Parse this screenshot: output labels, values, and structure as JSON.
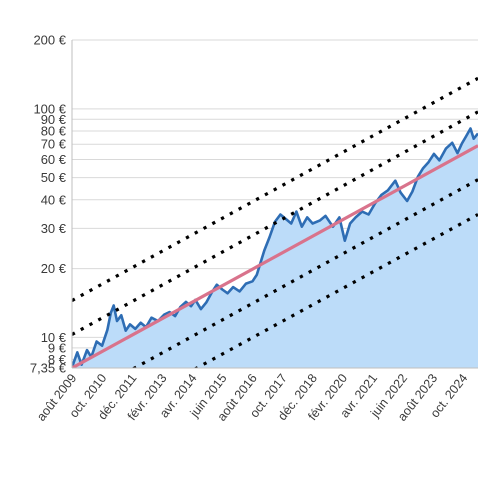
{
  "chart_data": {
    "type": "area",
    "title": "",
    "xlabel": "",
    "ylabel": "",
    "y_scale": "log",
    "ylim": [
      7.35,
      200
    ],
    "xlim": [
      "2009-08-01",
      "2025-05-01"
    ],
    "grid": "horizontal",
    "legend": "none",
    "y_ticks": [
      {
        "value": 7.35,
        "label": "7,35 €"
      },
      {
        "value": 8,
        "label": "8 €"
      },
      {
        "value": 9,
        "label": "9 €"
      },
      {
        "value": 10,
        "label": "10 €"
      },
      {
        "value": 20,
        "label": "20 €"
      },
      {
        "value": 30,
        "label": "30 €"
      },
      {
        "value": 40,
        "label": "40 €"
      },
      {
        "value": 50,
        "label": "50 €"
      },
      {
        "value": 60,
        "label": "60 €"
      },
      {
        "value": 70,
        "label": "70 €"
      },
      {
        "value": 80,
        "label": "80 €"
      },
      {
        "value": 90,
        "label": "90 €"
      },
      {
        "value": 100,
        "label": "100 €"
      },
      {
        "value": 200,
        "label": "200 €"
      }
    ],
    "x_ticks": [
      {
        "date": "2009-08-01",
        "label": "août 2009"
      },
      {
        "date": "2010-10-01",
        "label": "oct. 2010"
      },
      {
        "date": "2011-12-01",
        "label": "déc. 2011"
      },
      {
        "date": "2013-02-01",
        "label": "févr. 2013"
      },
      {
        "date": "2014-04-01",
        "label": "avr. 2014"
      },
      {
        "date": "2015-06-01",
        "label": "juin 2015"
      },
      {
        "date": "2016-08-01",
        "label": "août 2016"
      },
      {
        "date": "2017-10-01",
        "label": "oct. 2017"
      },
      {
        "date": "2018-12-01",
        "label": "déc. 2018"
      },
      {
        "date": "2020-02-01",
        "label": "févr. 2020"
      },
      {
        "date": "2021-04-01",
        "label": "avr. 2021"
      },
      {
        "date": "2022-06-01",
        "label": "juin 2022"
      },
      {
        "date": "2023-08-01",
        "label": "août 2023"
      },
      {
        "date": "2024-10-01",
        "label": "oct. 2024"
      }
    ],
    "series": [
      {
        "role": "price",
        "color": "#2e6db4",
        "fill": "#bcdcf9",
        "points": [
          [
            "2009-08-01",
            7.4
          ],
          [
            "2009-10-15",
            8.6
          ],
          [
            "2009-12-15",
            7.6
          ],
          [
            "2010-03-01",
            8.8
          ],
          [
            "2010-05-01",
            8.2
          ],
          [
            "2010-07-15",
            9.6
          ],
          [
            "2010-10-01",
            9.2
          ],
          [
            "2010-12-15",
            10.8
          ],
          [
            "2011-02-01",
            12.8
          ],
          [
            "2011-03-15",
            13.8
          ],
          [
            "2011-05-01",
            11.8
          ],
          [
            "2011-07-01",
            12.5
          ],
          [
            "2011-09-01",
            10.7
          ],
          [
            "2011-11-01",
            11.4
          ],
          [
            "2012-01-15",
            10.9
          ],
          [
            "2012-04-01",
            11.6
          ],
          [
            "2012-06-15",
            11.1
          ],
          [
            "2012-09-01",
            12.2
          ],
          [
            "2012-12-01",
            11.8
          ],
          [
            "2013-03-01",
            12.6
          ],
          [
            "2013-05-15",
            12.9
          ],
          [
            "2013-08-01",
            12.4
          ],
          [
            "2013-10-15",
            13.6
          ],
          [
            "2014-01-01",
            14.3
          ],
          [
            "2014-03-15",
            13.7
          ],
          [
            "2014-05-15",
            14.6
          ],
          [
            "2014-08-01",
            13.3
          ],
          [
            "2014-10-15",
            14.2
          ],
          [
            "2015-01-01",
            15.7
          ],
          [
            "2015-03-15",
            17.0
          ],
          [
            "2015-06-01",
            16.2
          ],
          [
            "2015-08-15",
            15.6
          ],
          [
            "2015-11-01",
            16.6
          ],
          [
            "2016-02-01",
            15.9
          ],
          [
            "2016-05-01",
            17.2
          ],
          [
            "2016-08-01",
            17.6
          ],
          [
            "2016-10-01",
            18.8
          ],
          [
            "2017-01-15",
            24.0
          ],
          [
            "2017-04-01",
            27.5
          ],
          [
            "2017-06-15",
            32.0
          ],
          [
            "2017-09-01",
            34.5
          ],
          [
            "2017-11-15",
            33.0
          ],
          [
            "2018-02-01",
            31.5
          ],
          [
            "2018-04-15",
            35.5
          ],
          [
            "2018-07-01",
            30.5
          ],
          [
            "2018-09-15",
            33.5
          ],
          [
            "2018-12-01",
            31.5
          ],
          [
            "2019-03-15",
            32.5
          ],
          [
            "2019-06-01",
            34.0
          ],
          [
            "2019-09-15",
            30.5
          ],
          [
            "2019-12-15",
            33.5
          ],
          [
            "2020-03-01",
            26.5
          ],
          [
            "2020-05-15",
            31.5
          ],
          [
            "2020-08-01",
            33.5
          ],
          [
            "2020-11-01",
            35.5
          ],
          [
            "2021-02-01",
            34.5
          ],
          [
            "2021-05-01",
            38.5
          ],
          [
            "2021-08-01",
            42.0
          ],
          [
            "2021-11-01",
            44.0
          ],
          [
            "2022-02-15",
            48.5
          ],
          [
            "2022-05-01",
            43.0
          ],
          [
            "2022-08-01",
            39.5
          ],
          [
            "2022-10-15",
            43.5
          ],
          [
            "2023-01-01",
            50.5
          ],
          [
            "2023-03-15",
            55.0
          ],
          [
            "2023-06-01",
            58.5
          ],
          [
            "2023-08-15",
            63.5
          ],
          [
            "2023-11-01",
            59.5
          ],
          [
            "2024-02-01",
            67.0
          ],
          [
            "2024-05-01",
            71.0
          ],
          [
            "2024-07-15",
            64.0
          ],
          [
            "2024-09-15",
            70.5
          ],
          [
            "2024-11-15",
            76.0
          ],
          [
            "2025-01-15",
            82.0
          ],
          [
            "2025-03-01",
            74.0
          ],
          [
            "2025-05-01",
            78.0
          ]
        ]
      },
      {
        "role": "trend",
        "color": "#d9738c",
        "style": "solid",
        "points": [
          [
            "2009-08-01",
            7.35
          ],
          [
            "2025-05-01",
            69.0
          ]
        ]
      },
      {
        "role": "band-upper-2",
        "color": "#000000",
        "style": "dotted",
        "points": [
          [
            "2009-08-01",
            14.5
          ],
          [
            "2025-05-01",
            136.0
          ]
        ]
      },
      {
        "role": "band-upper-1",
        "color": "#000000",
        "style": "dotted",
        "points": [
          [
            "2009-08-01",
            10.3
          ],
          [
            "2025-05-01",
            97.0
          ]
        ]
      },
      {
        "role": "band-lower-1",
        "color": "#000000",
        "style": "dotted",
        "points": [
          [
            "2009-08-01",
            5.2
          ],
          [
            "2025-05-01",
            49.0
          ]
        ]
      },
      {
        "role": "band-lower-2",
        "color": "#000000",
        "style": "dotted",
        "points": [
          [
            "2009-08-01",
            3.7
          ],
          [
            "2025-05-01",
            34.5
          ]
        ]
      }
    ]
  }
}
